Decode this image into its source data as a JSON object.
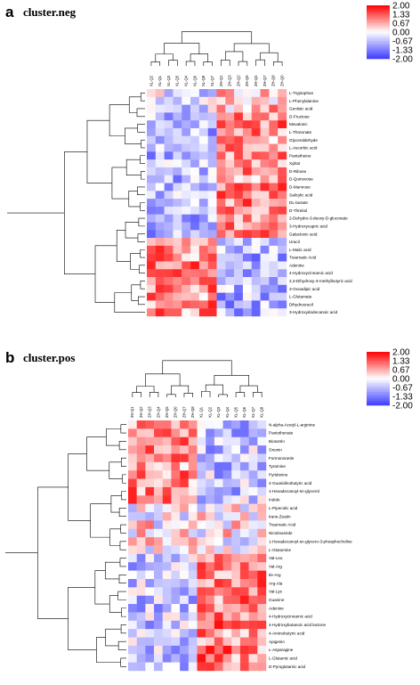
{
  "chart_data": [
    {
      "type": "heatmap",
      "panel_letter": "a",
      "title": "cluster.neg",
      "columns": [
        "XL-Q2",
        "XL-Q1",
        "XL-Q3",
        "XL-Q5",
        "XL-Q4",
        "XL-Q6",
        "XL-Q8",
        "XL-Q7",
        "ZH-Q1",
        "ZH-Q3",
        "ZH-Q2",
        "ZH-Q5",
        "ZH-Q4",
        "ZH-Q7",
        "ZH-Q8",
        "ZH-Q6"
      ],
      "rows": [
        "L-Tryptophan",
        "L-Phenylalanine",
        "Gentisic acid",
        "D-Fructose",
        "Mevalonic",
        "L-Threonate",
        "Glyceraldehyde",
        "L-Ascorbic acid",
        "Pantetheine",
        "Xylitol",
        "D-Ribose",
        "D-Quinovose",
        "D-Mannose",
        "Salicylic acid",
        "DL-lactate",
        "D-Threitol",
        "2-Dehydro-3-deoxy-D-gluconate",
        "3-Hydroxycapric acid",
        "Galactonic acid",
        "Uracil",
        "L-Malic acid",
        "Traumatic Acid",
        "Adenine",
        "4-Hydroxycinnamic acid",
        "2,3-Dihydroxy-3-methylbutyric acid",
        "3-Oxoadipic acid",
        "L-Glutamate",
        "Dihydrouracil",
        "3-Hydroxydodecanoic acid"
      ],
      "color_scale": {
        "min": -2,
        "max": 2,
        "ticks": [
          "2.00",
          "1.33",
          "0.67",
          "0.00",
          "-0.67",
          "-1.33",
          "-2.00"
        ],
        "colors": [
          "#ff0000",
          "#ff5a5a",
          "#ffb4b4",
          "#ffffff",
          "#b4b4ff",
          "#7a7aff",
          "#3c3cff"
        ]
      }
    },
    {
      "type": "heatmap",
      "panel_letter": "b",
      "title": "cluster.pos",
      "columns": [
        "ZH-Q1",
        "ZH-Q2",
        "ZH-Q3",
        "ZH-Q4",
        "ZH-Q5",
        "ZH-Q6",
        "ZH-Q7",
        "ZH-Q8",
        "XL-Q1",
        "XL-Q2",
        "XL-Q3",
        "XL-Q4",
        "XL-Q5",
        "XL-Q6",
        "XL-Q7",
        "XL-Q8"
      ],
      "rows": [
        "N-alpha-Acetyl-L-arginine",
        "Pantothenate",
        "Biosotrin",
        "Ononin",
        "Formononetin",
        "Tyramine",
        "Pyridoxine",
        "4-Guanidinobutyric acid",
        "1-Hexadecanoyl-sn-glycerol",
        "Indole",
        "L-Pipecolic acid",
        "trans-Zeatin",
        "Traumatic Acid",
        "Nicotinamide",
        "1-Hexadecanoyl-sn-glycero-3-phosphocholine",
        "L-Glutamine",
        "Val-Leu",
        "Val-Arg",
        "Ile-Arg",
        "Arg-Ala",
        "Val-Lys",
        "Guanine",
        "Adenine",
        "4-Hydroxycinnamic acid",
        "4-Hydroxybutanoic acid lactone",
        "4-Aminobutyric acid",
        "Apigenin",
        "L-Asparagine",
        "L-Glutamic acid",
        "D-Pyroglutamic acid"
      ],
      "color_scale": {
        "min": -2,
        "max": 2,
        "ticks": [
          "2.00",
          "1.33",
          "0.67",
          "0.00",
          "-0.67",
          "-1.33",
          "-2.00"
        ],
        "colors": [
          "#ff0000",
          "#ff5a5a",
          "#ffb4b4",
          "#ffffff",
          "#b4b4ff",
          "#7a7aff",
          "#3c3cff"
        ]
      }
    }
  ]
}
